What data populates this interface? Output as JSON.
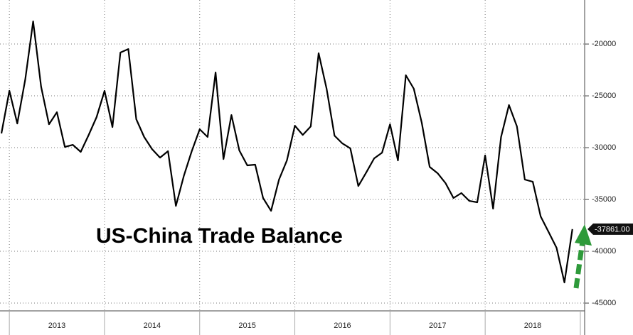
{
  "chart_data": {
    "type": "line",
    "annotation": "US-China Trade Balance",
    "categories": [
      null,
      null,
      null,
      null,
      null,
      null,
      null,
      "2013",
      null,
      null,
      null,
      null,
      null,
      null,
      null,
      null,
      null,
      null,
      null,
      "2014",
      null,
      null,
      null,
      null,
      null,
      null,
      null,
      null,
      null,
      null,
      null,
      "2015",
      null,
      null,
      null,
      null,
      null,
      null,
      null,
      null,
      null,
      null,
      null,
      "2016",
      null,
      null,
      null,
      null,
      null,
      null,
      null,
      null,
      null,
      null,
      null,
      "2017",
      null,
      null,
      null,
      null,
      null,
      null,
      null,
      null,
      null,
      null,
      null,
      "2018",
      null,
      null,
      null,
      null,
      null
    ],
    "series": [
      {
        "name": null,
        "color": "#000000",
        "values": [
          -28630,
          -24520,
          -27670,
          -23420,
          -17810,
          -24110,
          -27740,
          -26580,
          -29930,
          -29730,
          -30410,
          -28770,
          -27050,
          -24520,
          -28010,
          -20820,
          -20480,
          -27260,
          -28970,
          -30140,
          -30960,
          -30340,
          -35620,
          -32740,
          -30340,
          -28220,
          -28970,
          -22740,
          -31100,
          -26850,
          -30270,
          -31710,
          -31640,
          -34860,
          -36100,
          -33080,
          -31230,
          -27880,
          -28770,
          -27950,
          -20890,
          -24310,
          -28840,
          -29590,
          -30070,
          -33700,
          -32400,
          -31030,
          -30480,
          -27740,
          -31230,
          -23010,
          -24310,
          -27600,
          -31850,
          -32470,
          -33420,
          -34860,
          -34380,
          -35140,
          -35270,
          -30750,
          -35890,
          -28970,
          -25890,
          -27950,
          -33080,
          -33290,
          -36640,
          -38150,
          -39660,
          -43010,
          -37861
        ],
        "value_labels": [
          null,
          null,
          null,
          null,
          null,
          null,
          null,
          null,
          null,
          null,
          null,
          null,
          null,
          null,
          null,
          null,
          null,
          null,
          null,
          null,
          null,
          null,
          null,
          null,
          null,
          null,
          null,
          null,
          null,
          null,
          null,
          null,
          null,
          null,
          null,
          null,
          null,
          null,
          null,
          null,
          null,
          null,
          null,
          null,
          null,
          null,
          null,
          null,
          null,
          null,
          null,
          null,
          null,
          null,
          null,
          null,
          null,
          null,
          null,
          null,
          null,
          null,
          null,
          null,
          null,
          null,
          null,
          null,
          null,
          null,
          null,
          null,
          "-37861.00"
        ]
      }
    ],
    "ylim": [
      -45750,
      -15750
    ],
    "yticks": [
      -45000,
      -40000,
      -35000,
      -30000,
      -25000,
      -20000
    ],
    "grid": true
  }
}
